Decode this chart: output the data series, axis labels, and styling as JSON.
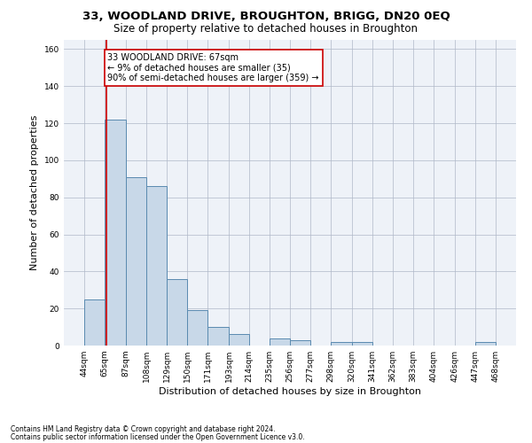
{
  "title": "33, WOODLAND DRIVE, BROUGHTON, BRIGG, DN20 0EQ",
  "subtitle": "Size of property relative to detached houses in Broughton",
  "xlabel": "Distribution of detached houses by size in Broughton",
  "ylabel": "Number of detached properties",
  "bar_edges": [
    44,
    65,
    87,
    108,
    129,
    150,
    171,
    193,
    214,
    235,
    256,
    277,
    298,
    320,
    341,
    362,
    383,
    404,
    426,
    447,
    468
  ],
  "bar_heights": [
    25,
    122,
    91,
    86,
    36,
    19,
    10,
    6,
    0,
    4,
    3,
    0,
    2,
    2,
    0,
    0,
    0,
    0,
    0,
    2
  ],
  "bar_color": "#c8d8e8",
  "bar_edgecolor": "#5a8ab0",
  "vline_x": 67,
  "vline_color": "#cc0000",
  "annotation_text": "33 WOODLAND DRIVE: 67sqm\n← 9% of detached houses are smaller (35)\n90% of semi-detached houses are larger (359) →",
  "annotation_box_edgecolor": "#cc0000",
  "annotation_box_facecolor": "#ffffff",
  "ylim": [
    0,
    165
  ],
  "yticks": [
    0,
    20,
    40,
    60,
    80,
    100,
    120,
    140,
    160
  ],
  "grid_color": "#b0b8c8",
  "background_color": "#eef2f8",
  "footer_line1": "Contains HM Land Registry data © Crown copyright and database right 2024.",
  "footer_line2": "Contains public sector information licensed under the Open Government Licence v3.0.",
  "title_fontsize": 9.5,
  "subtitle_fontsize": 8.5,
  "tick_fontsize": 6.5,
  "ylabel_fontsize": 8,
  "xlabel_fontsize": 8,
  "annotation_fontsize": 7,
  "footer_fontsize": 5.5
}
